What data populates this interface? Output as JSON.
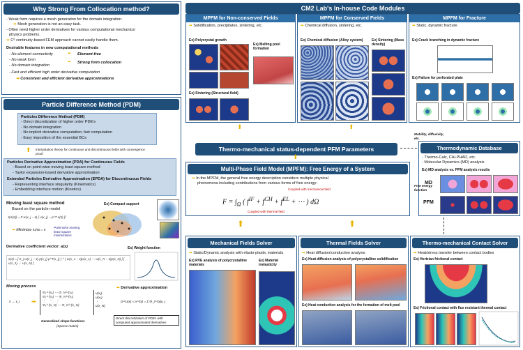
{
  "left": {
    "why": {
      "title": "Why Strong From Collocation method?",
      "b1": "- Weak form requires a mesh generation for the domain integration.",
      "b2": "Mesh generation is not an easy task.",
      "b3": "- Often need higher order derivatives for various computational mechanics/",
      "b3b": "physics problems.",
      "b4": "C⁰ continuity-based FEM approach cannot easily handle them.",
      "desirable": "Desirable features in new computational methods",
      "f1": "- No element connectivity",
      "f1r": "Element-free",
      "f2": "- No weak form",
      "f3": "- No domain integration",
      "f23r": "Strong form collocation",
      "f4": "- Fast and efficient high order derivative computation",
      "f5": "Consistent and efficient derivative approximations"
    },
    "pdm": {
      "title": "Particle Difference Method (PDM)",
      "box1_title": "Particles Difference Method (PDM)",
      "box1": [
        "- Direct discretization of higher order PDE's",
        "- No domain integration",
        "- No implicit derivative computation; fast computation",
        "- Easy imposition of the essential BCs"
      ],
      "interp": "Interpolation theory for continuous and discontinuous fields with convergence proof",
      "box2_title": "Particles Derivative Approximation (PDA) for Continuous Fields",
      "box2": [
        "- Based on point-wise moving least square method",
        "- Taylor expansion-based derivative approximation"
      ],
      "box3_title": "Extended Particles Derivative  Approximation (EPDA) for Discontinuous Fields",
      "box3": [
        "- Representing interface singularity (Kinematics)",
        "- Embedding interface motion (Kinetics)"
      ],
      "mls_title": "Moving least square method",
      "mls_sub": "Based on the particle model",
      "minimize": "Minimize",
      "pointwise": "Point-wise moving least square minimization",
      "compact": "Compact support",
      "coef": "Derivative coefficient vector:",
      "coef_sym": "a(x)",
      "weight": "Weight function",
      "moving": "Moving process",
      "deriv_title": "Derivative approximation",
      "gen_shape": "Generalized shape functions",
      "sparse": "(Sparse matrix)",
      "direct": "Direct discretization of PDEs with computed approximated derivatives",
      "ex": "Ex)"
    }
  },
  "right": {
    "title": "CM2 Lab's In-house Code Modules",
    "nonc": {
      "title": "MPFM for Non-conserved Fields",
      "desc": "Solidification, precipitates, sintering, etc.",
      "ex1": "Polycrystal growth",
      "ex2": "Melting pool formation",
      "ex3": "Sintering (Structural field)"
    },
    "cons": {
      "title": "MPFM for Conserved Fields",
      "desc": "Chemical diffusion, sintering, etc.",
      "ex1": "Chemical diffusion (Alloy system)",
      "ex2": "Sintering (Mass density)"
    },
    "frac": {
      "title": "MPFM for Fracture",
      "desc": "Static, dynamic fracture",
      "ex1": "Crack branching in dynamic fracture",
      "ex2": "Failure for perforated plate"
    },
    "thermo_params": "Thermo-mechanical status-dependent PFM Parameters",
    "mobility": "Mobility, diffusivity, etc.",
    "free_energy": "Free energy function",
    "mpfm": {
      "title": "Multi-Phase Field Model (MPFM): Free Energy of a System",
      "text1": "In the MPFM, the general free energy description considers multiple physical",
      "text2": "phenomena including contributions from various forms of free energy:",
      "coupled_mech": "Coupled with mechanical field",
      "coupled_therm": "Coupled with thermal field"
    },
    "tdb": {
      "title": "Thermodynamic Database",
      "b1": "- Thermo-Calc, CALPHAD, etc.",
      "b2": "- Molecular Dynamics (MD) analysis",
      "ex": "MD analysis vs. PFM analysis results",
      "md": "MD",
      "pfm": "PFM"
    },
    "mech": {
      "title": "Mechanical Fields Solver",
      "desc": "Static/Dynamic analysis with elasto-plastic materials",
      "ex1": "RVE analysis of polycrystalline materials",
      "ex2": "Material inelasticity"
    },
    "therm": {
      "title": "Thermal Fields Solver",
      "desc": "Heat diffusion/conduction analysis",
      "ex1": "Heat diffusion analysis of polycrystalline solidification",
      "ex2": "Heat conduction analysis for the formation of melt pool"
    },
    "contact": {
      "title": "Thermo-mechanical Contact Solver",
      "desc": "Heat/stress transfer between contact bodies",
      "ex1": "Hertzian frictional contact",
      "ex2": "Frictional contact with flux resistant thermal contact"
    }
  },
  "colors": {
    "header": "#1f4e79",
    "mini_header": "#2e6fa8",
    "accent": "#e8b400",
    "box": "#c9d9ea"
  }
}
